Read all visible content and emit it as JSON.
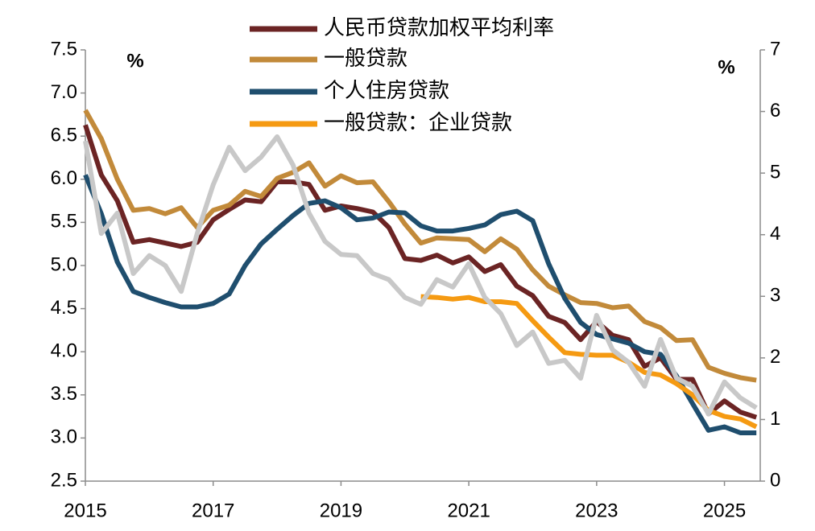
{
  "chart_data": {
    "type": "line",
    "ylabel": "%",
    "y2label": "%",
    "x": [
      2015,
      2015.25,
      2015.5,
      2015.75,
      2016,
      2016.25,
      2016.5,
      2016.75,
      2017,
      2017.25,
      2017.5,
      2017.75,
      2018,
      2018.25,
      2018.5,
      2018.75,
      2019,
      2019.25,
      2019.5,
      2019.75,
      2020,
      2020.25,
      2020.5,
      2020.75,
      2021,
      2021.25,
      2021.5,
      2021.75,
      2022,
      2022.25,
      2022.5,
      2022.75,
      2023,
      2023.25,
      2023.5,
      2023.75,
      2024,
      2024.25,
      2024.5,
      2024.75,
      2025,
      2025.25,
      2025.5
    ],
    "xlim": [
      2015,
      2025.56
    ],
    "xticks": [
      2015,
      2017,
      2019,
      2021,
      2023,
      2025
    ],
    "ylim": [
      2.5,
      7.5
    ],
    "yticks": [
      2.5,
      {
        "value": 3,
        "label": "3.0"
      },
      3.5,
      {
        "value": 4,
        "label": "4.0"
      },
      4.5,
      {
        "value": 5,
        "label": "5.0"
      },
      5.5,
      {
        "value": 6,
        "label": "6.0"
      },
      6.5,
      {
        "value": 7,
        "label": "7.0"
      },
      7.5
    ],
    "y2lim": [
      0,
      7
    ],
    "y2ticks": [
      0,
      1,
      2,
      3,
      4,
      5,
      6,
      7
    ],
    "grid": false,
    "series": [
      {
        "name": "人民币贷款加权平均利率",
        "color": "#6b2424",
        "values": [
          6.63,
          6.05,
          5.75,
          5.27,
          5.3,
          5.26,
          5.22,
          5.27,
          5.53,
          5.65,
          5.76,
          5.74,
          5.97,
          5.97,
          5.94,
          5.64,
          5.69,
          5.66,
          5.62,
          5.44,
          5.08,
          5.06,
          5.12,
          5.03,
          5.1,
          4.93,
          5.01,
          4.76,
          4.65,
          4.41,
          4.34,
          4.14,
          4.35,
          4.19,
          4.14,
          3.83,
          3.93,
          3.68,
          3.68,
          3.28,
          3.43,
          3.3,
          3.24
        ]
      },
      {
        "name": "一般贷款",
        "color": "#c28a3a",
        "values": [
          6.8,
          6.47,
          6.0,
          5.64,
          5.66,
          5.6,
          5.67,
          5.44,
          5.64,
          5.7,
          5.86,
          5.8,
          6.01,
          6.08,
          6.19,
          5.92,
          6.04,
          5.96,
          5.97,
          5.74,
          5.48,
          5.26,
          5.32,
          5.31,
          5.3,
          5.16,
          5.31,
          5.19,
          4.95,
          4.76,
          4.66,
          4.57,
          4.56,
          4.51,
          4.53,
          4.35,
          4.28,
          4.13,
          4.14,
          3.82,
          3.75,
          3.7,
          3.67
        ]
      },
      {
        "name": "个人住房贷款",
        "color": "#1f4e6e",
        "values": [
          6.05,
          5.6,
          5.04,
          4.7,
          4.63,
          4.57,
          4.52,
          4.52,
          4.56,
          4.67,
          5.0,
          5.25,
          5.42,
          5.58,
          5.72,
          5.75,
          5.67,
          5.53,
          5.55,
          5.62,
          5.61,
          5.46,
          5.4,
          5.4,
          5.43,
          5.47,
          5.59,
          5.63,
          5.52,
          5.02,
          4.62,
          4.34,
          4.2,
          4.15,
          4.1,
          4.0,
          3.97,
          3.72,
          3.4,
          3.09,
          3.13,
          3.06,
          3.06
        ]
      },
      {
        "name": "一般贷款：企业贷款",
        "color": "#f59a12",
        "values": [
          null,
          null,
          null,
          null,
          null,
          null,
          null,
          null,
          null,
          null,
          null,
          null,
          null,
          null,
          null,
          null,
          null,
          null,
          null,
          null,
          null,
          4.64,
          4.63,
          4.61,
          4.63,
          4.58,
          4.58,
          4.56,
          4.36,
          4.17,
          3.99,
          3.97,
          3.96,
          3.96,
          3.88,
          3.76,
          3.73,
          3.63,
          3.5,
          3.32,
          3.25,
          3.22,
          3.13
        ]
      },
      {
        "color": "#c8c8c8",
        "axis": "y2",
        "values": [
          5.52,
          4.02,
          4.35,
          3.37,
          3.66,
          3.5,
          3.08,
          4.02,
          4.81,
          5.42,
          5.04,
          5.26,
          5.59,
          5.13,
          4.35,
          3.89,
          3.68,
          3.66,
          3.37,
          3.27,
          2.98,
          2.87,
          3.27,
          3.15,
          3.53,
          2.98,
          2.72,
          2.2,
          2.42,
          1.91,
          1.96,
          1.67,
          2.69,
          2.13,
          1.93,
          1.54,
          2.3,
          1.67,
          1.54,
          1.09,
          1.61,
          1.35,
          1.19
        ]
      }
    ]
  }
}
